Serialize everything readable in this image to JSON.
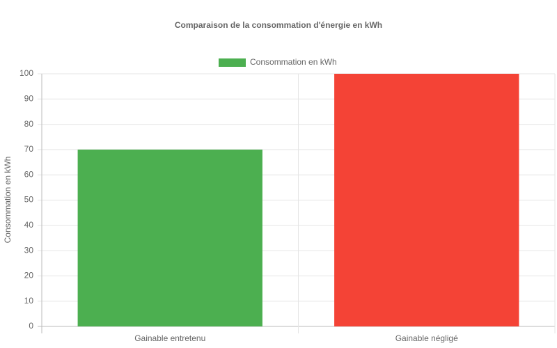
{
  "chart_data": {
    "type": "bar",
    "title": "Comparaison de la consommation d'énergie en kWh",
    "y_label": "Consommation en kWh",
    "categories": [
      "Gainable entretenu",
      "Gainable négligé"
    ],
    "series": [
      {
        "name": "Consommation en kWh",
        "colors": [
          "#4caf50",
          "#f44336"
        ],
        "values": [
          70,
          100
        ]
      }
    ],
    "ylim": [
      0,
      100
    ],
    "yticks": [
      0,
      10,
      20,
      30,
      40,
      50,
      60,
      70,
      80,
      90,
      100
    ],
    "grid": true,
    "legend": "top"
  }
}
